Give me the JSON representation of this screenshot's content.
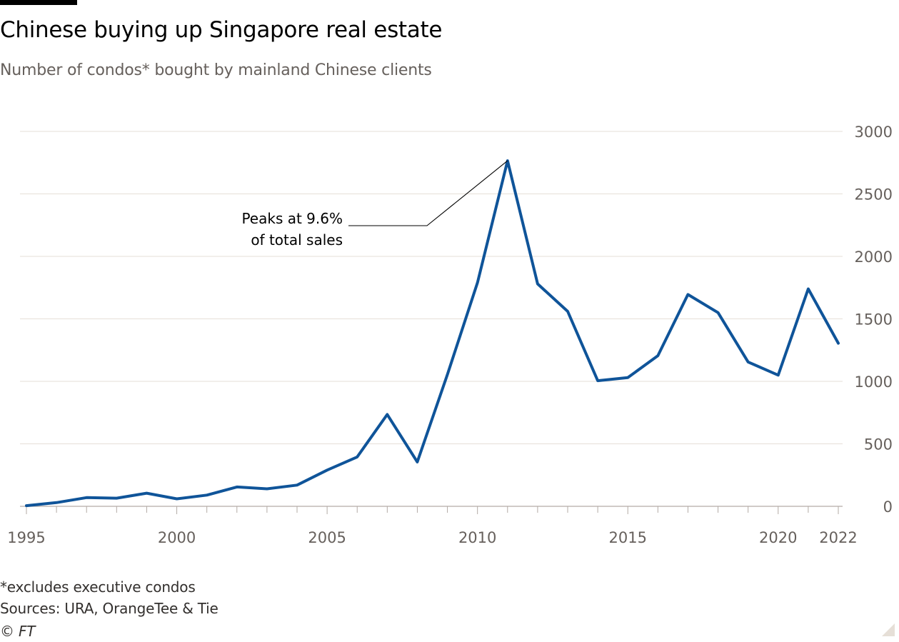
{
  "header": {
    "title": "Chinese buying up Singapore real estate",
    "subtitle": "Number of condos* bought by mainland Chinese clients"
  },
  "footer": {
    "note": "*excludes executive condos",
    "sources": "Sources: URA, OrangeTee & Tie",
    "credit": "© FT"
  },
  "colors": {
    "line": "#0f5499",
    "grid": "#e6dfd7",
    "axis": "#b3aba6",
    "text": "#66605c"
  },
  "chart_data": {
    "type": "line",
    "title": "Chinese buying up Singapore real estate",
    "subtitle": "Number of condos* bought by mainland Chinese clients",
    "x": [
      1995,
      1996,
      1997,
      1998,
      1999,
      2000,
      2001,
      2002,
      2003,
      2004,
      2005,
      2006,
      2007,
      2008,
      2009,
      2010,
      2011,
      2012,
      2013,
      2014,
      2015,
      2016,
      2017,
      2018,
      2019,
      2020,
      2021,
      2022
    ],
    "series": [
      {
        "values": [
          5,
          30,
          70,
          65,
          105,
          60,
          90,
          155,
          140,
          170,
          290,
          395,
          735,
          355,
          1055,
          1790,
          2765,
          1780,
          1560,
          1005,
          1030,
          1205,
          1695,
          1550,
          1155,
          1050,
          1740,
          1305
        ]
      }
    ],
    "x_ticks": [
      1995,
      2000,
      2005,
      2010,
      2015,
      2020,
      2022
    ],
    "y_ticks": [
      0,
      500,
      1000,
      1500,
      2000,
      2500,
      3000
    ],
    "xlim": [
      1995,
      2022
    ],
    "ylim": [
      0,
      3000
    ],
    "y_axis_side": "right",
    "grid": "horizontal",
    "annotation": {
      "lines": [
        "Peaks at 9.6%",
        "of total sales"
      ],
      "x": 2011,
      "y": 2765
    }
  }
}
